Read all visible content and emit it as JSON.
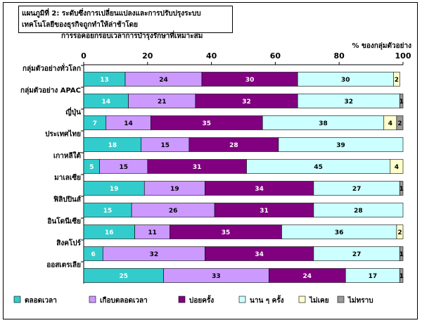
{
  "chart_data": {
    "type": "bar",
    "stacked": true,
    "orientation": "horizontal",
    "title_label": "แผนภูมิที่ 2:",
    "title_line1": "ระดับซึ่งการเปลี่ยนแปลงและการปรับปรุงระบบเทคโนโลยีของธุรกิจถูกทำให้ล่าช้าโดย",
    "title_line2": "การรอคอยกรอบเวลาการบำรุงรักษาที่เหมาะสม",
    "unit_label": "% ของกลุ่มตัวอย่าง",
    "xlim": [
      0,
      100
    ],
    "xticks": [
      "0",
      "20",
      "40",
      "60",
      "80",
      "100"
    ],
    "categories": [
      "กลุ่มตัวอย่างทั่วโลก",
      "กลุ่มตัวอย่าง APAC",
      "ญี่ปุ่น",
      "ประเทศไทย",
      "เกาหลีใต้",
      "มาเลเซีย",
      "ฟิลิปปินส์",
      "อินโดนีเซีย",
      "สิงคโปร์",
      "ออสเตรเลีย"
    ],
    "series": [
      {
        "name": "ตลอดเวลา",
        "color": "#33cccc",
        "values": [
          13,
          14,
          7,
          18,
          5,
          19,
          15,
          16,
          6,
          25
        ],
        "labels": [
          "13",
          "14",
          "7",
          "18",
          "5",
          "19",
          "15",
          "16",
          "6",
          "25"
        ]
      },
      {
        "name": "เกือบตลอดเวลา",
        "color": "#cc99ff",
        "values": [
          24,
          21,
          14,
          15,
          15,
          19,
          26,
          11,
          32,
          33
        ],
        "labels": [
          "24",
          "21",
          "14",
          "15",
          "15",
          "19",
          "26",
          "11",
          "32",
          "33"
        ]
      },
      {
        "name": "บ่อยครั้ง",
        "color": "#800080",
        "values": [
          30,
          32,
          35,
          28,
          31,
          34,
          31,
          35,
          34,
          24
        ],
        "labels": [
          "30",
          "32",
          "35",
          "28",
          "31",
          "34",
          "31",
          "35",
          "34",
          "24"
        ]
      },
      {
        "name": "นาน ๆ ครั้ง",
        "color": "#ccffff",
        "values": [
          30,
          32,
          38,
          39,
          45,
          27,
          28,
          36,
          27,
          17
        ],
        "labels": [
          "30",
          "32",
          "38",
          "39",
          "45",
          "27",
          "28",
          "36",
          "27",
          "17"
        ]
      },
      {
        "name": "ไม่เคย",
        "color": "#ffffcc",
        "values": [
          2,
          0,
          4,
          0,
          4,
          0,
          0,
          2,
          0,
          0
        ],
        "labels": [
          "2",
          "",
          "4",
          "",
          "4",
          "",
          "",
          "2",
          "",
          ""
        ]
      },
      {
        "name": "ไม่ทราบ",
        "color": "#999999",
        "values": [
          0,
          1,
          2,
          0,
          0,
          1,
          0,
          0,
          1,
          1
        ],
        "labels": [
          "",
          "1",
          "2",
          "",
          "",
          "1",
          "",
          "",
          "1",
          "1"
        ]
      }
    ]
  }
}
